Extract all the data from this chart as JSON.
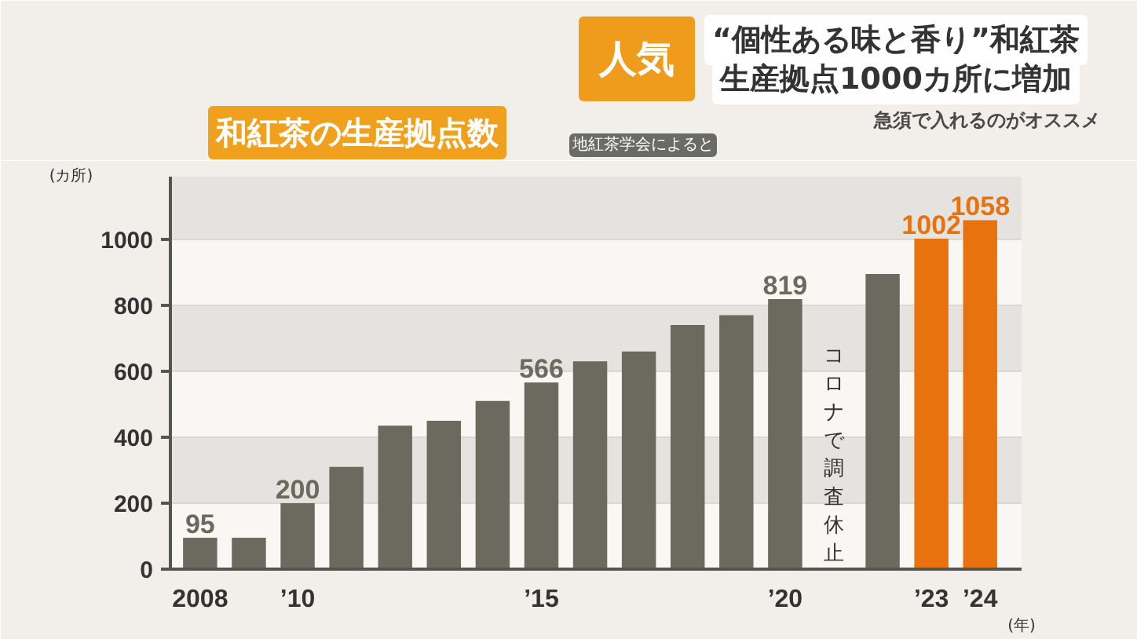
{
  "chart_data": {
    "type": "bar",
    "title": "和紅茶の生産拠点数",
    "xlabel": "(年)",
    "ylabel": "(カ所)",
    "categories": [
      "2008",
      null,
      "’10",
      null,
      null,
      null,
      null,
      "’15",
      null,
      null,
      null,
      null,
      "’20",
      null,
      null,
      "’23",
      "’24"
    ],
    "values": [
      95,
      95,
      200,
      310,
      435,
      450,
      510,
      566,
      630,
      660,
      740,
      770,
      819,
      null,
      895,
      1002,
      1058
    ],
    "colors": [
      "#6b6a5e",
      "#6b6a5e",
      "#6b6a5e",
      "#6b6a5e",
      "#6b6a5e",
      "#6b6a5e",
      "#6b6a5e",
      "#6b6a5e",
      "#6b6a5e",
      "#6b6a5e",
      "#6b6a5e",
      "#6b6a5e",
      "#6b6a5e",
      "#6b6a5e",
      "#6b6a5e",
      "#e8730e",
      "#e8730e"
    ],
    "value_labels": [
      "95",
      null,
      "200",
      null,
      null,
      null,
      null,
      "566",
      null,
      null,
      null,
      null,
      "819",
      null,
      null,
      "1002",
      "1058"
    ],
    "ylim": [
      0,
      1190
    ],
    "yticks": [
      0,
      200,
      400,
      600,
      800,
      1000
    ],
    "grid": "y",
    "annotations": [
      "人気",
      "“個性ある味と香り”和紅茶",
      "生産拠点1000カ所に増加",
      "急須で入れるのがオススメ",
      "地紅茶学会によると",
      "コロナで調査休止"
    ]
  }
}
